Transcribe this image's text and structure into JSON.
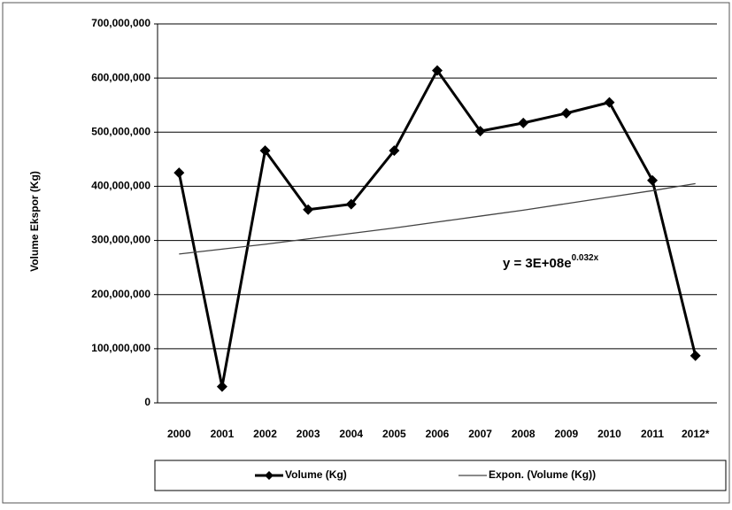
{
  "chart_data": {
    "type": "line",
    "y_label": "Volume Ekspor (Kg)",
    "categories": [
      "2000",
      "2001",
      "2002",
      "2003",
      "2004",
      "2005",
      "2006",
      "2007",
      "2008",
      "2009",
      "2010",
      "2011",
      "2012*"
    ],
    "series": [
      {
        "name": "Volume (Kg)",
        "color": "#000000",
        "marker": "diamond",
        "values": [
          425000000,
          30000000,
          466000000,
          357000000,
          367000000,
          466000000,
          614000000,
          502000000,
          517000000,
          535000000,
          555000000,
          411000000,
          87000000
        ]
      },
      {
        "name": "Expon. (Volume (Kg))",
        "color": "#444444",
        "values": [
          275000000,
          284000000,
          293000000,
          303000000,
          313000000,
          323000000,
          334000000,
          345000000,
          356000000,
          368000000,
          380000000,
          392000000,
          405000000
        ]
      }
    ],
    "annotation": {
      "text": "y = 3E+08e",
      "superscript": "0.032x"
    },
    "ylim": [
      0,
      700000000
    ],
    "yticks": [
      0,
      {
        "value": 100000000,
        "label": "100,000,000"
      },
      {
        "value": 200000000,
        "label": "200,000,000"
      },
      {
        "value": 300000000,
        "label": "300,000,000"
      },
      {
        "value": 400000000,
        "label": "400,000,000"
      },
      {
        "value": 500000000,
        "label": "500,000,000"
      },
      {
        "value": 600000000,
        "label": "600,000,000"
      },
      {
        "value": 700000000,
        "label": "700,000,000"
      }
    ],
    "grid": true,
    "legend": "bottom"
  }
}
